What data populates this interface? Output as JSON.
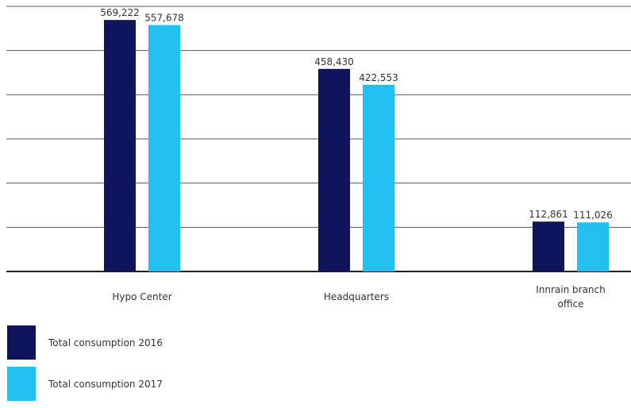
{
  "chart_data": {
    "type": "bar",
    "categories": [
      "Hypo Center",
      "Headquarters",
      "Innrain branch office"
    ],
    "series": [
      {
        "name": "Total consumption 2016",
        "values": [
          569222,
          458430,
          112861
        ],
        "labels": [
          "569,222",
          "458,430",
          "112,861"
        ],
        "color": "#10145a"
      },
      {
        "name": "Total consumption 2017",
        "values": [
          557678,
          422553,
          111026
        ],
        "labels": [
          "557,678",
          "422,553",
          "111,026"
        ],
        "color": "#22c0ee"
      }
    ],
    "title": "",
    "xlabel": "",
    "ylabel": "",
    "ylim": [
      0,
      600000
    ],
    "grid": true,
    "legend": "bottom-left"
  }
}
